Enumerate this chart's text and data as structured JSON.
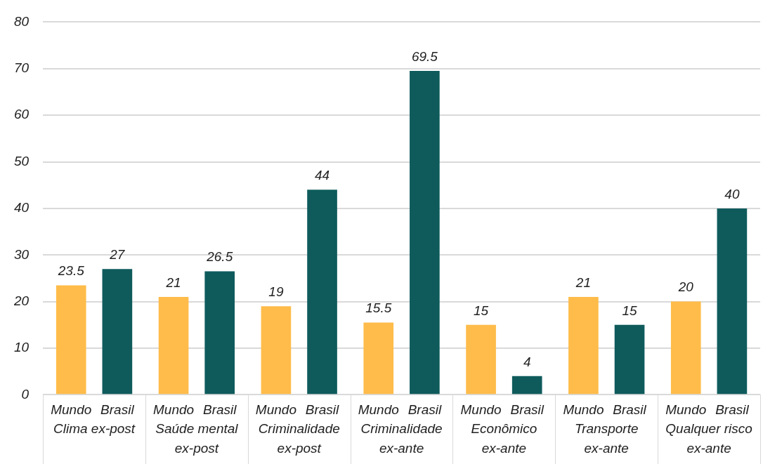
{
  "chart_data": {
    "type": "bar",
    "categories": [
      "Clima ex-post",
      "Saúde mental ex-post",
      "Criminalidade ex-post",
      "Criminalidade ex-ante",
      "Econômico ex-ante",
      "Transporte ex-ante",
      "Qualquer risco ex-ante"
    ],
    "series": [
      {
        "name": "Mundo",
        "color": "#ffbc4a",
        "values": [
          23.5,
          21,
          19,
          15.5,
          15,
          21,
          20
        ]
      },
      {
        "name": "Brasil",
        "color": "#0f5b5c",
        "values": [
          27,
          26.5,
          44,
          69.5,
          4,
          15,
          40
        ]
      }
    ],
    "ylim": [
      0,
      80
    ],
    "yticks": [
      0,
      10,
      20,
      30,
      40,
      50,
      60,
      70,
      80
    ],
    "grid": "y",
    "data_labels": true
  }
}
